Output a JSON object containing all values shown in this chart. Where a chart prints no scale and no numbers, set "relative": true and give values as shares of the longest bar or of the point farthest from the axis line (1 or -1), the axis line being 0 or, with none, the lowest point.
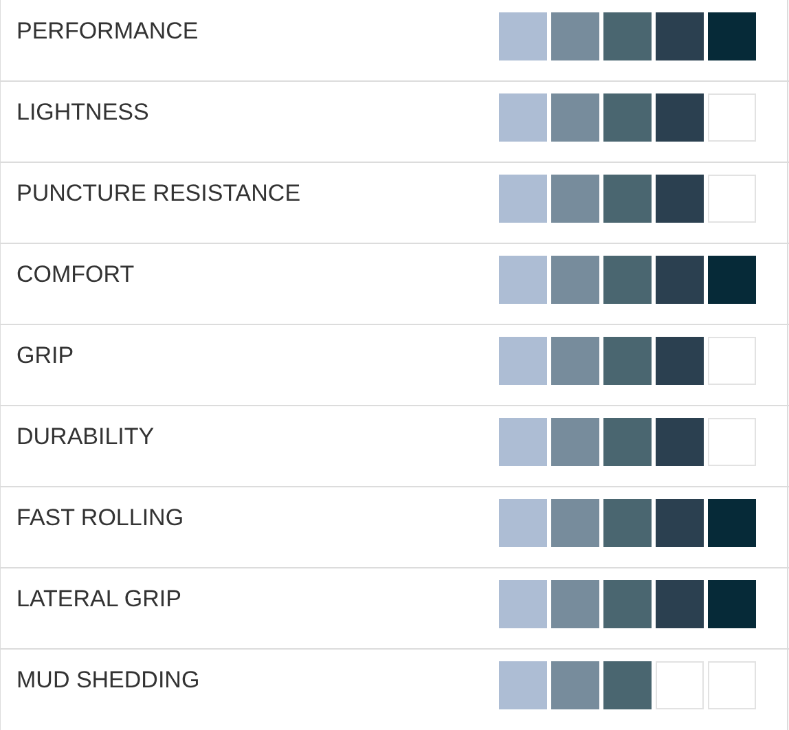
{
  "chart_data": {
    "type": "bar",
    "orientation": "horizontal",
    "relative": true,
    "categories": [
      "PERFORMANCE",
      "LIGHTNESS",
      "PUNCTURE RESISTANCE",
      "COMFORT",
      "GRIP",
      "DURABILITY",
      "FAST ROLLING",
      "LATERAL GRIP",
      "MUD SHEDDING"
    ],
    "values": [
      1,
      0.8,
      0.8,
      1,
      0.8,
      0.8,
      1,
      1,
      0.6
    ]
  }
}
